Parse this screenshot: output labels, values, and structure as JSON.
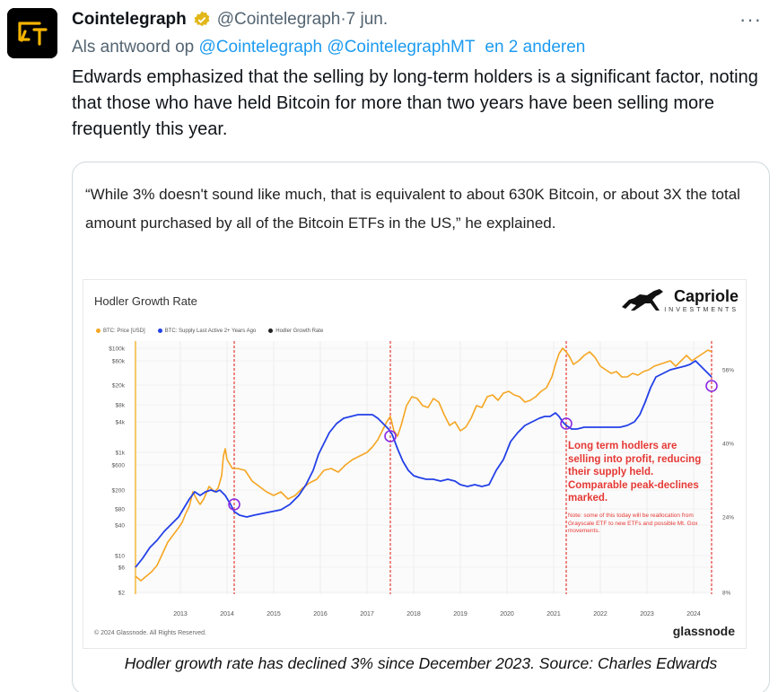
{
  "tweet": {
    "display_name": "Cointelegraph",
    "handle": "@Cointelegraph",
    "separator": " · ",
    "date": "7 jun.",
    "replying_prefix": "Als antwoord op ",
    "replying_to": [
      "@Cointelegraph",
      "@CointelegraphMT"
    ],
    "replying_suffix": "en 2 anderen",
    "text": "Edwards emphasized that the selling by long-term holders is a significant factor, noting that those who have held Bitcoin for more than two years have been selling more frequently this year.",
    "more_label": "···"
  },
  "card": {
    "quote": "“While 3% doesn't sound like much, that is equivalent to about 630K Bitcoin, or about 3X the total amount purchased by all of the Bitcoin ETFs in the US,” he explained.",
    "caption": "Hodler growth rate has declined 3% since December 2023. Source: Charles Edwards"
  },
  "chart_data": {
    "type": "line",
    "title": "Hodler Growth Rate",
    "brand": "Capriole",
    "brand_sub": "INVESTMENTS",
    "legend": [
      "BTC: Price [USD]",
      "BTC: Supply Last Active 2+ Years Ago",
      "Hodler Growth Rate"
    ],
    "x_ticks": [
      "2013",
      "2014",
      "2015",
      "2016",
      "2017",
      "2018",
      "2019",
      "2020",
      "2021",
      "2022",
      "2023",
      "2024"
    ],
    "y_left_ticks": [
      "$100k",
      "$60k",
      "$20k",
      "$8k",
      "$4k",
      "$1k",
      "$600",
      "$200",
      "$80",
      "$40",
      "$10",
      "$6",
      "$2"
    ],
    "y_right_ticks": [
      "56%",
      "40%",
      "24%",
      "8%"
    ],
    "annotation": "Long term hodlers are selling into profit, reducing their supply held. Comparable peak-declines marked.",
    "note": "Note: some of this today will be reallocation from Grayscale ETF to new ETFs and possible Mt. Gox movements.",
    "marked_peaks": [
      "2014",
      "2017",
      "2021",
      "2024"
    ],
    "copyright": "© 2024 Glassnode. All Rights Reserved.",
    "source_logo": "glassnode",
    "colors": {
      "price": "#f5a623",
      "supply": "#2340e8",
      "markers": "#e53935",
      "circles": "#8a2be2"
    }
  }
}
